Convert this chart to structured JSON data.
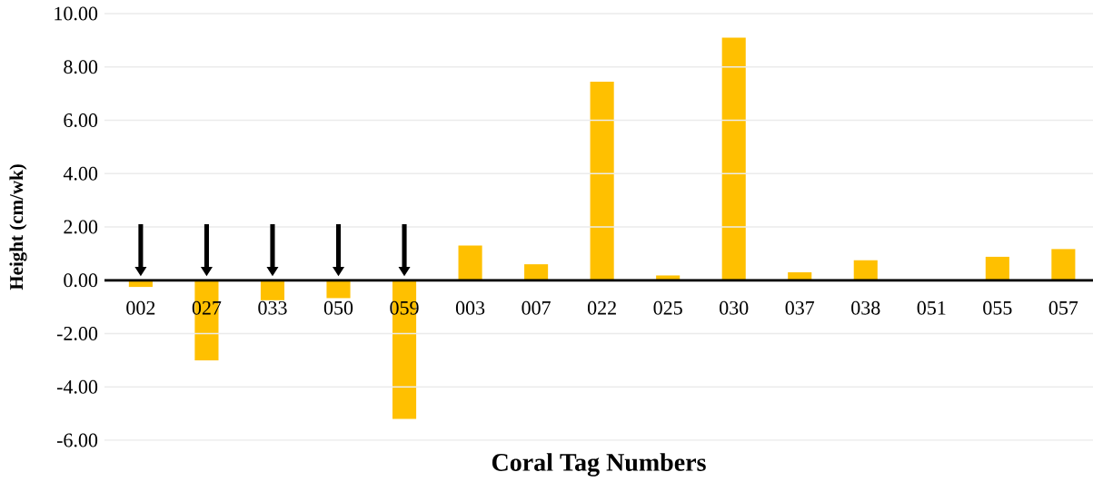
{
  "chart_data": {
    "type": "bar",
    "xlabel": "Coral Tag Numbers",
    "ylabel": "Height (cm/wk)",
    "categories": [
      "002",
      "027",
      "033",
      "050",
      "059",
      "003",
      "007",
      "022",
      "025",
      "030",
      "037",
      "038",
      "051",
      "055",
      "057"
    ],
    "values": [
      -0.25,
      -3.0,
      -0.75,
      -0.67,
      -5.2,
      1.3,
      0.6,
      7.45,
      0.18,
      9.1,
      0.3,
      0.75,
      0,
      0.88,
      1.17
    ],
    "color": "#ffc000",
    "ylim": [
      -6,
      10
    ],
    "yticks": [
      {
        "value": -6,
        "label": "-6.00"
      },
      {
        "value": -4,
        "label": "-4.00"
      },
      {
        "value": -2,
        "label": "-2.00"
      },
      {
        "value": 0,
        "label": "0.00"
      },
      {
        "value": 2,
        "label": "2.00"
      },
      {
        "value": 4,
        "label": "4.00"
      },
      {
        "value": 6,
        "label": "6.00"
      },
      {
        "value": 8,
        "label": "8.00"
      },
      {
        "value": 10,
        "label": "10.00"
      }
    ],
    "grid": "y"
  }
}
